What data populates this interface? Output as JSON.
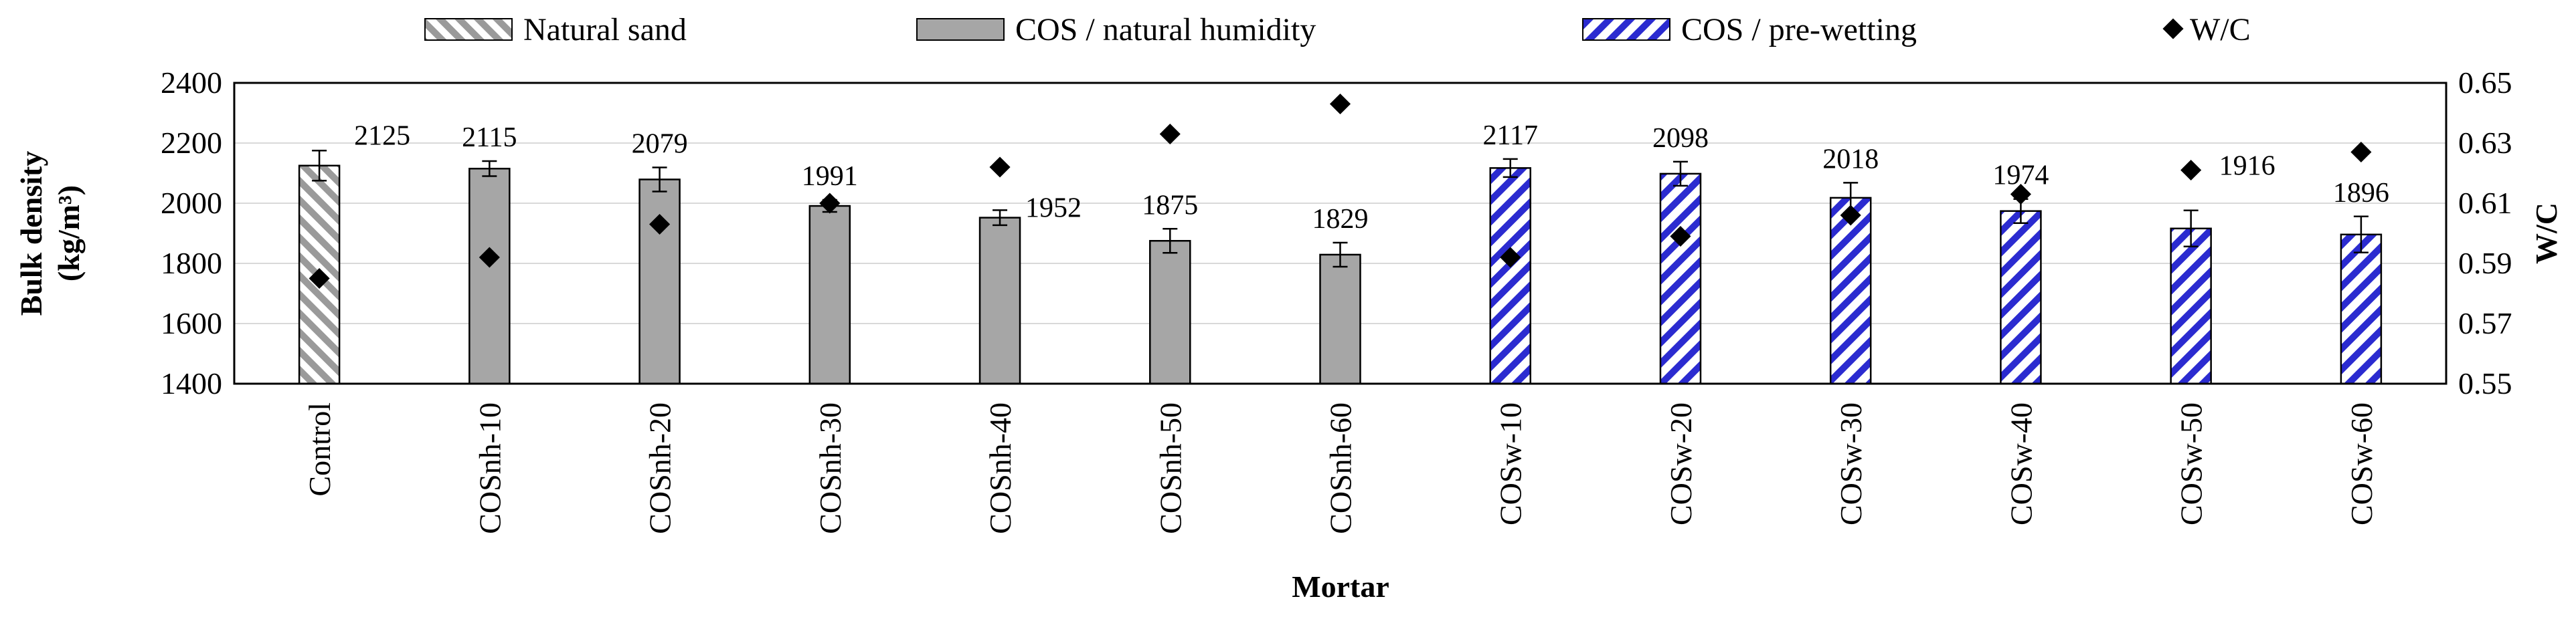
{
  "chart_data": {
    "type": "bar",
    "title": "",
    "xlabel": "Mortar",
    "ylabel_line1": "Bulk density",
    "ylabel_line2": "(kg/m³)",
    "y2label": "W/C",
    "ylim": [
      1400,
      2400
    ],
    "y_ticks": [
      "1400",
      "1600",
      "1800",
      "2000",
      "2200",
      "2400"
    ],
    "y2lim": [
      0.55,
      0.65
    ],
    "y2_ticks": [
      "0.55",
      "0.57",
      "0.59",
      "0.61",
      "0.63",
      "0.65"
    ],
    "grid": true,
    "legend_position": "top",
    "categories": [
      "Control",
      "COSnh-10",
      "COSnh-20",
      "COSnh-30",
      "COSnh-40",
      "COSnh-50",
      "COSnh-60",
      "COSw-10",
      "COSw-20",
      "COSw-30",
      "COSw-40",
      "COSw-50",
      "COSw-60"
    ],
    "bulk_density": [
      2125,
      2115,
      2079,
      1991,
      1952,
      1875,
      1829,
      2117,
      2098,
      2018,
      1974,
      1916,
      1896
    ],
    "bulk_density_labels": [
      "2125",
      "2115",
      "2079",
      "1991",
      "1952",
      "1875",
      "1829",
      "2117",
      "2098",
      "2018",
      "1974",
      "1916",
      "1896"
    ],
    "error": [
      50,
      25,
      40,
      20,
      25,
      40,
      40,
      30,
      40,
      50,
      40,
      60,
      60
    ],
    "bar_group": [
      "natural",
      "humidity",
      "humidity",
      "humidity",
      "humidity",
      "humidity",
      "humidity",
      "prewet",
      "prewet",
      "prewet",
      "prewet",
      "prewet",
      "prewet"
    ],
    "wc": [
      0.585,
      0.592,
      0.603,
      0.61,
      0.622,
      0.633,
      0.643,
      0.592,
      0.599,
      0.606,
      0.613,
      0.621,
      0.627
    ],
    "legend": {
      "natural": "Natural sand",
      "humidity": "COS / natural humidity",
      "prewet": "COS / pre-wetting",
      "wc": "W/C"
    },
    "colors": {
      "natural_stripe": "#9a9a9a",
      "humidity_fill": "#a6a6a6",
      "prewet_stripe": "#2b2bd0",
      "marker": "#000000",
      "gridline": "#d9d9d9"
    }
  }
}
